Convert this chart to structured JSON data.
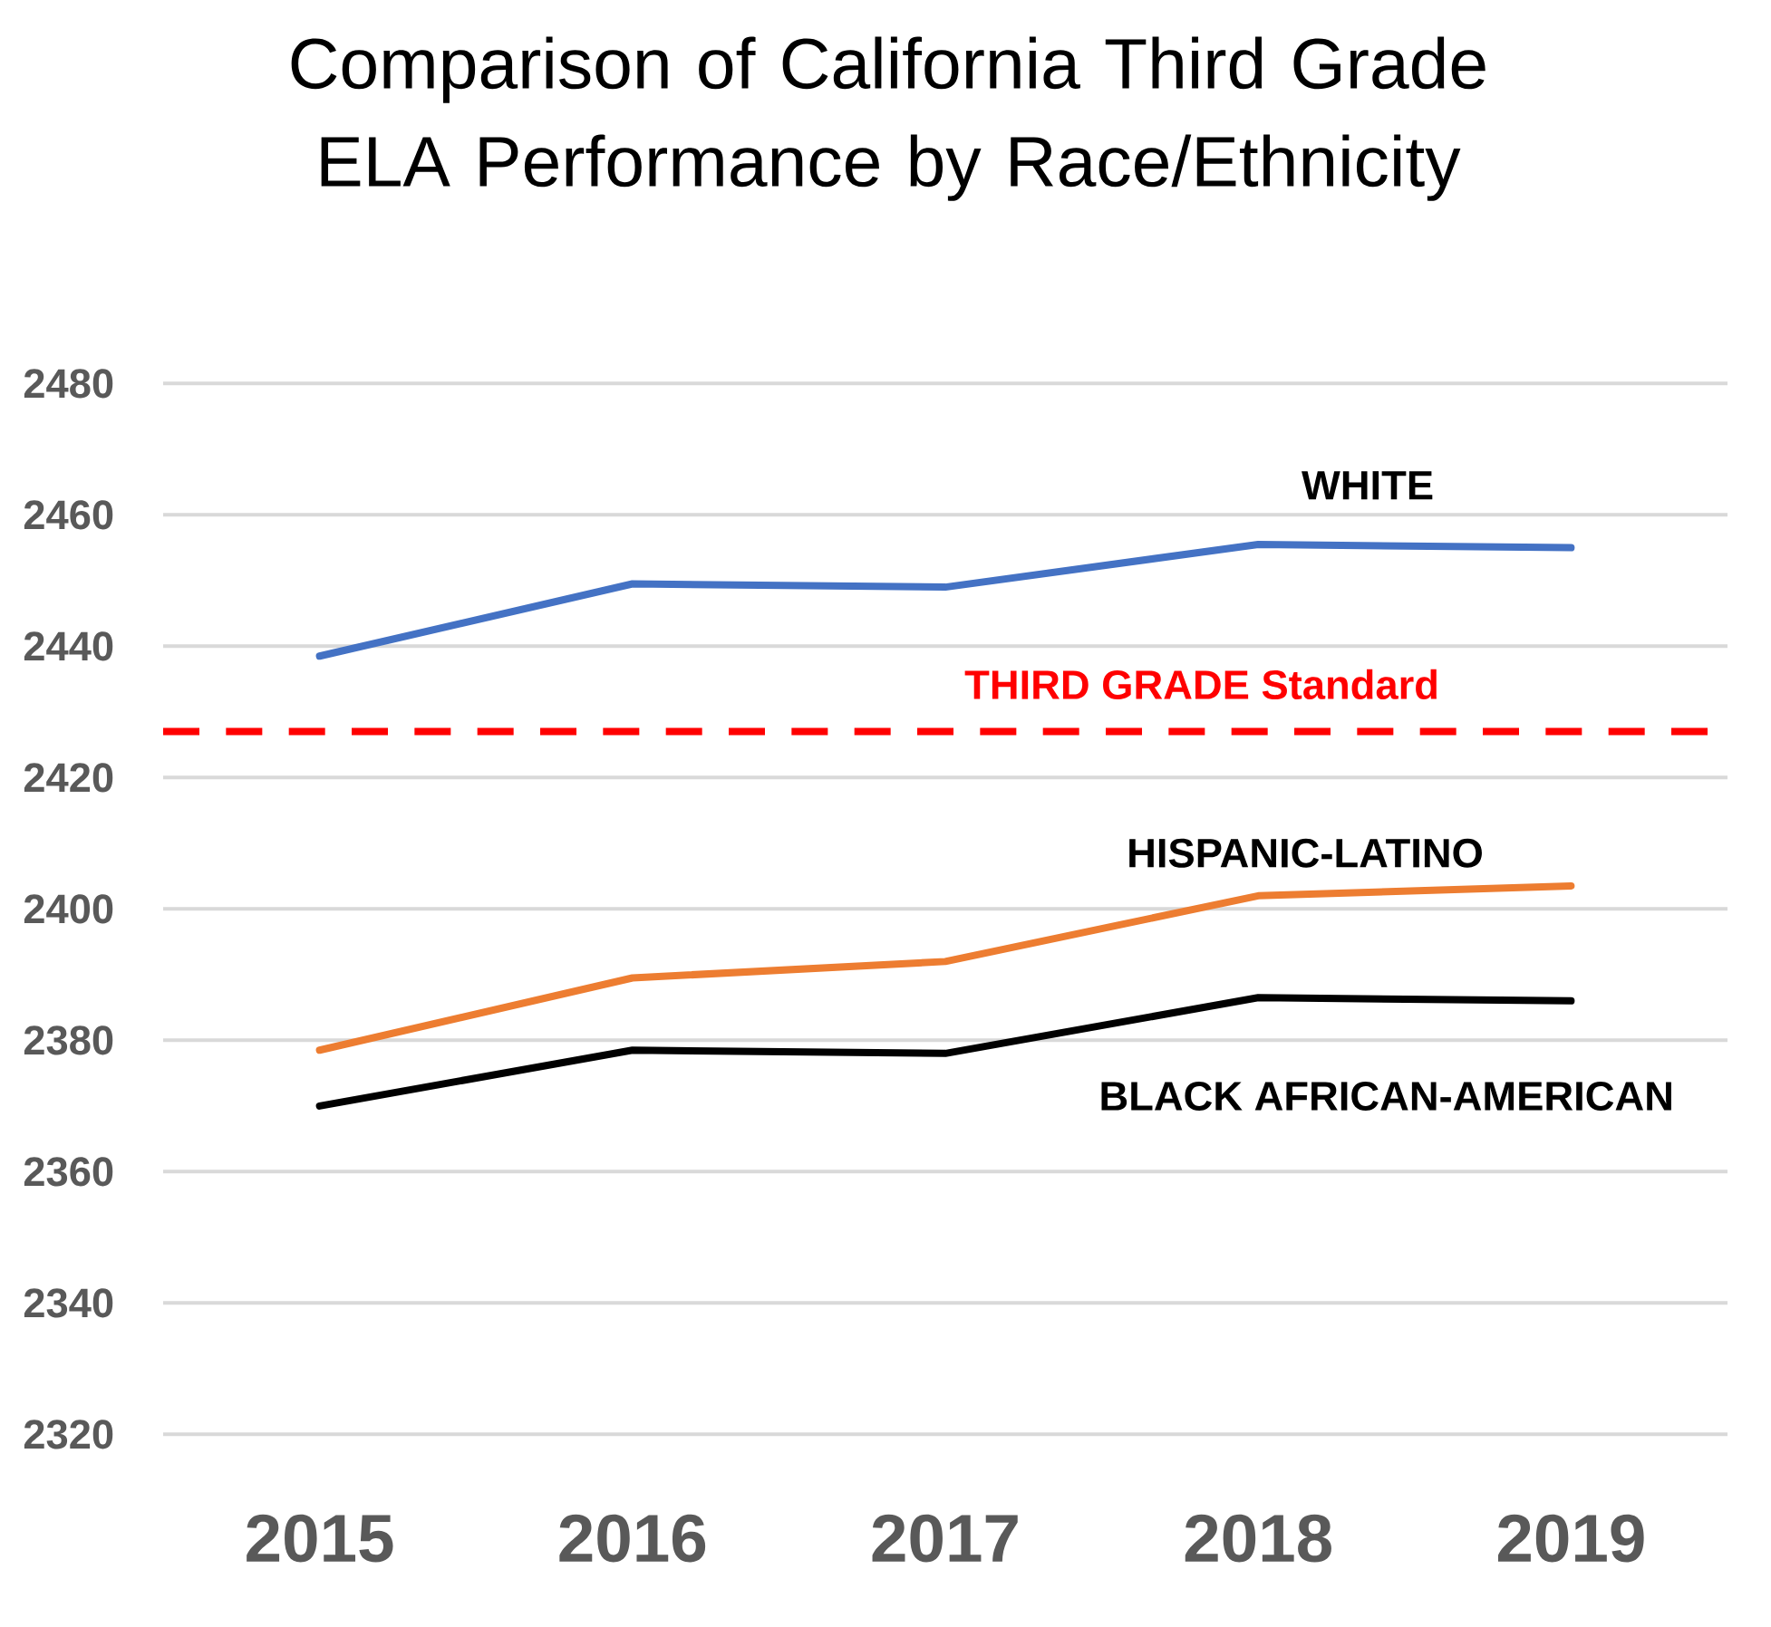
{
  "chart_data": {
    "type": "line",
    "title": "Comparison of California Third Grade ELA  Performance by Race/Ethnicity",
    "categories": [
      "2015",
      "2016",
      "2017",
      "2018",
      "2019"
    ],
    "series": [
      {
        "name": "WHITE",
        "color": "#4472c4",
        "values": [
          2438.5,
          2449.5,
          2449,
          2455.5,
          2455
        ]
      },
      {
        "name": "HISPANIC-LATINO",
        "color": "#ed7d31",
        "values": [
          2378.5,
          2389.5,
          2392,
          2402,
          2403.5
        ]
      },
      {
        "name": "BLACK AFRICAN-AMERICAN",
        "color": "#000000",
        "values": [
          2370,
          2378.5,
          2378,
          2386.5,
          2386
        ]
      }
    ],
    "ylim": [
      2320,
      2480
    ],
    "yticks": [
      2320,
      2340,
      2360,
      2380,
      2400,
      2420,
      2440,
      2460,
      2480
    ],
    "grid": "y",
    "ref_lines": [
      {
        "axis": "y",
        "value": 2427,
        "label": "THIRD GRADE Standard",
        "color": "#ff0000",
        "line_style": "dashed"
      }
    ]
  }
}
